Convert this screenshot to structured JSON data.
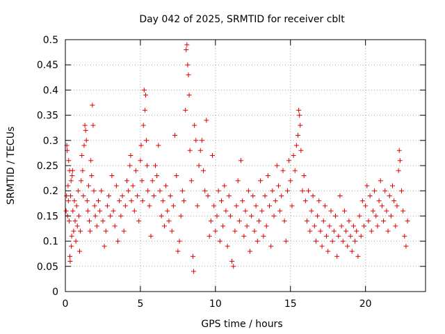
{
  "chart_data": {
    "type": "scatter",
    "title": "Day 042 of 2025, SRMTID for receiver cblt",
    "xlabel": "GPS time / hours",
    "ylabel": "SRMTID / TECUs",
    "xlim": [
      0,
      24
    ],
    "ylim": [
      0,
      0.5
    ],
    "xticks": [
      0,
      5,
      10,
      15,
      20
    ],
    "xtick_labels": [
      "0",
      "5",
      "10",
      "15",
      "20"
    ],
    "yticks": [
      0,
      0.05,
      0.1,
      0.15,
      0.2,
      0.25,
      0.3,
      0.35,
      0.4,
      0.45,
      0.5
    ],
    "ytick_labels": [
      "0",
      "0.05",
      "0.1",
      "0.15",
      "0.2",
      "0.25",
      "0.3",
      "0.35",
      "0.4",
      "0.45",
      "0.5"
    ],
    "grid": true,
    "marker": "+",
    "color": "#e00000",
    "series": [
      {
        "points": [
          [
            0.05,
            0.16
          ],
          [
            0.08,
            0.19
          ],
          [
            0.1,
            0.29
          ],
          [
            0.12,
            0.28
          ],
          [
            0.15,
            0.15
          ],
          [
            0.18,
            0.21
          ],
          [
            0.2,
            0.18
          ],
          [
            0.22,
            0.26
          ],
          [
            0.25,
            0.14
          ],
          [
            0.28,
            0.24
          ],
          [
            0.3,
            0.07
          ],
          [
            0.32,
            0.06
          ],
          [
            0.35,
            0.19
          ],
          [
            0.38,
            0.22
          ],
          [
            0.4,
            0.09
          ],
          [
            0.42,
            0.11
          ],
          [
            0.45,
            0.23
          ],
          [
            0.48,
            0.24
          ],
          [
            0.5,
            0.16
          ],
          [
            0.55,
            0.12
          ],
          [
            0.6,
            0.18
          ],
          [
            0.65,
            0.14
          ],
          [
            0.7,
            0.1
          ],
          [
            0.75,
            0.17
          ],
          [
            0.8,
            0.13
          ],
          [
            0.85,
            0.2
          ],
          [
            0.9,
            0.15
          ],
          [
            0.95,
            0.08
          ],
          [
            1.0,
            0.12
          ],
          [
            1.05,
            0.22
          ],
          [
            1.1,
            0.27
          ],
          [
            1.15,
            0.24
          ],
          [
            1.2,
            0.19
          ],
          [
            1.25,
            0.29
          ],
          [
            1.3,
            0.33
          ],
          [
            1.35,
            0.32
          ],
          [
            1.4,
            0.3
          ],
          [
            1.45,
            0.18
          ],
          [
            1.5,
            0.16
          ],
          [
            1.55,
            0.21
          ],
          [
            1.6,
            0.14
          ],
          [
            1.65,
            0.12
          ],
          [
            1.7,
            0.26
          ],
          [
            1.75,
            0.23
          ],
          [
            1.8,
            0.37
          ],
          [
            1.85,
            0.33
          ],
          [
            1.9,
            0.2
          ],
          [
            1.95,
            0.17
          ],
          [
            2.0,
            0.15
          ],
          [
            2.1,
            0.13
          ],
          [
            2.2,
            0.18
          ],
          [
            2.3,
            0.16
          ],
          [
            2.4,
            0.2
          ],
          [
            2.5,
            0.14
          ],
          [
            2.6,
            0.09
          ],
          [
            2.7,
            0.12
          ],
          [
            2.8,
            0.17
          ],
          [
            2.9,
            0.19
          ],
          [
            3.0,
            0.15
          ],
          [
            3.1,
            0.23
          ],
          [
            3.2,
            0.16
          ],
          [
            3.3,
            0.13
          ],
          [
            3.4,
            0.21
          ],
          [
            3.5,
            0.1
          ],
          [
            3.6,
            0.18
          ],
          [
            3.7,
            0.15
          ],
          [
            3.8,
            0.19
          ],
          [
            3.9,
            0.12
          ],
          [
            4.0,
            0.17
          ],
          [
            4.1,
            0.22
          ],
          [
            4.2,
            0.2
          ],
          [
            4.3,
            0.25
          ],
          [
            4.35,
            0.27
          ],
          [
            4.4,
            0.18
          ],
          [
            4.5,
            0.21
          ],
          [
            4.6,
            0.16
          ],
          [
            4.7,
            0.24
          ],
          [
            4.8,
            0.19
          ],
          [
            4.9,
            0.14
          ],
          [
            5.0,
            0.26
          ],
          [
            5.05,
            0.29
          ],
          [
            5.1,
            0.22
          ],
          [
            5.15,
            0.18
          ],
          [
            5.2,
            0.33
          ],
          [
            5.25,
            0.4
          ],
          [
            5.3,
            0.36
          ],
          [
            5.35,
            0.39
          ],
          [
            5.4,
            0.3
          ],
          [
            5.45,
            0.25
          ],
          [
            5.5,
            0.2
          ],
          [
            5.6,
            0.17
          ],
          [
            5.7,
            0.11
          ],
          [
            5.8,
            0.22
          ],
          [
            5.9,
            0.19
          ],
          [
            6.0,
            0.25
          ],
          [
            6.1,
            0.23
          ],
          [
            6.2,
            0.29
          ],
          [
            6.3,
            0.2
          ],
          [
            6.4,
            0.15
          ],
          [
            6.5,
            0.18
          ],
          [
            6.6,
            0.13
          ],
          [
            6.7,
            0.21
          ],
          [
            6.8,
            0.16
          ],
          [
            6.9,
            0.14
          ],
          [
            7.0,
            0.19
          ],
          [
            7.1,
            0.12
          ],
          [
            7.2,
            0.17
          ],
          [
            7.3,
            0.31
          ],
          [
            7.4,
            0.23
          ],
          [
            7.5,
            0.08
          ],
          [
            7.6,
            0.1
          ],
          [
            7.7,
            0.15
          ],
          [
            7.8,
            0.2
          ],
          [
            7.9,
            0.18
          ],
          [
            8.0,
            0.36
          ],
          [
            8.05,
            0.48
          ],
          [
            8.1,
            0.49
          ],
          [
            8.15,
            0.45
          ],
          [
            8.2,
            0.43
          ],
          [
            8.25,
            0.39
          ],
          [
            8.3,
            0.28
          ],
          [
            8.4,
            0.22
          ],
          [
            8.5,
            0.07
          ],
          [
            8.55,
            0.04
          ],
          [
            8.6,
            0.33
          ],
          [
            8.7,
            0.3
          ],
          [
            8.8,
            0.17
          ],
          [
            8.9,
            0.25
          ],
          [
            9.0,
            0.28
          ],
          [
            9.1,
            0.3
          ],
          [
            9.2,
            0.24
          ],
          [
            9.3,
            0.2
          ],
          [
            9.4,
            0.34
          ],
          [
            9.5,
            0.19
          ],
          [
            9.6,
            0.11
          ],
          [
            9.7,
            0.14
          ],
          [
            9.8,
            0.27
          ],
          [
            9.9,
            0.17
          ],
          [
            10.0,
            0.12
          ],
          [
            10.1,
            0.15
          ],
          [
            10.2,
            0.2
          ],
          [
            10.3,
            0.1
          ],
          [
            10.4,
            0.18
          ],
          [
            10.5,
            0.13
          ],
          [
            10.6,
            0.21
          ],
          [
            10.7,
            0.16
          ],
          [
            10.8,
            0.09
          ],
          [
            10.9,
            0.19
          ],
          [
            11.0,
            0.15
          ],
          [
            11.1,
            0.06
          ],
          [
            11.2,
            0.05
          ],
          [
            11.3,
            0.12
          ],
          [
            11.4,
            0.17
          ],
          [
            11.5,
            0.22
          ],
          [
            11.6,
            0.14
          ],
          [
            11.7,
            0.26
          ],
          [
            11.8,
            0.18
          ],
          [
            11.9,
            0.11
          ],
          [
            12.0,
            0.16
          ],
          [
            12.1,
            0.13
          ],
          [
            12.2,
            0.2
          ],
          [
            12.3,
            0.08
          ],
          [
            12.4,
            0.15
          ],
          [
            12.5,
            0.19
          ],
          [
            12.6,
            0.12
          ],
          [
            12.7,
            0.17
          ],
          [
            12.8,
            0.1
          ],
          [
            12.9,
            0.14
          ],
          [
            13.0,
            0.22
          ],
          [
            13.1,
            0.16
          ],
          [
            13.2,
            0.11
          ],
          [
            13.3,
            0.19
          ],
          [
            13.4,
            0.13
          ],
          [
            13.5,
            0.23
          ],
          [
            13.6,
            0.17
          ],
          [
            13.7,
            0.09
          ],
          [
            13.8,
            0.2
          ],
          [
            13.9,
            0.15
          ],
          [
            14.0,
            0.18
          ],
          [
            14.1,
            0.25
          ],
          [
            14.2,
            0.21
          ],
          [
            14.3,
            0.16
          ],
          [
            14.4,
            0.19
          ],
          [
            14.5,
            0.24
          ],
          [
            14.6,
            0.14
          ],
          [
            14.7,
            0.1
          ],
          [
            14.8,
            0.2
          ],
          [
            14.9,
            0.26
          ],
          [
            15.0,
            0.22
          ],
          [
            15.1,
            0.17
          ],
          [
            15.2,
            0.27
          ],
          [
            15.3,
            0.24
          ],
          [
            15.4,
            0.29
          ],
          [
            15.5,
            0.31
          ],
          [
            15.55,
            0.36
          ],
          [
            15.6,
            0.35
          ],
          [
            15.65,
            0.33
          ],
          [
            15.7,
            0.28
          ],
          [
            15.8,
            0.2
          ],
          [
            15.9,
            0.23
          ],
          [
            16.0,
            0.18
          ],
          [
            16.1,
            0.14
          ],
          [
            16.2,
            0.2
          ],
          [
            16.3,
            0.12
          ],
          [
            16.4,
            0.16
          ],
          [
            16.5,
            0.19
          ],
          [
            16.6,
            0.13
          ],
          [
            16.7,
            0.1
          ],
          [
            16.8,
            0.15
          ],
          [
            16.9,
            0.18
          ],
          [
            17.0,
            0.12
          ],
          [
            17.1,
            0.09
          ],
          [
            17.2,
            0.14
          ],
          [
            17.3,
            0.17
          ],
          [
            17.4,
            0.11
          ],
          [
            17.5,
            0.08
          ],
          [
            17.6,
            0.13
          ],
          [
            17.7,
            0.16
          ],
          [
            17.8,
            0.1
          ],
          [
            17.9,
            0.12
          ],
          [
            18.0,
            0.15
          ],
          [
            18.1,
            0.07
          ],
          [
            18.2,
            0.11
          ],
          [
            18.3,
            0.19
          ],
          [
            18.4,
            0.13
          ],
          [
            18.5,
            0.1
          ],
          [
            18.6,
            0.16
          ],
          [
            18.7,
            0.12
          ],
          [
            18.8,
            0.09
          ],
          [
            18.9,
            0.14
          ],
          [
            19.0,
            0.11
          ],
          [
            19.1,
            0.08
          ],
          [
            19.2,
            0.13
          ],
          [
            19.3,
            0.1
          ],
          [
            19.4,
            0.12
          ],
          [
            19.5,
            0.07
          ],
          [
            19.6,
            0.15
          ],
          [
            19.7,
            0.11
          ],
          [
            19.8,
            0.18
          ],
          [
            19.9,
            0.13
          ],
          [
            20.0,
            0.17
          ],
          [
            20.1,
            0.21
          ],
          [
            20.2,
            0.14
          ],
          [
            20.3,
            0.19
          ],
          [
            20.4,
            0.12
          ],
          [
            20.5,
            0.16
          ],
          [
            20.6,
            0.2
          ],
          [
            20.7,
            0.15
          ],
          [
            20.8,
            0.13
          ],
          [
            20.9,
            0.18
          ],
          [
            21.0,
            0.22
          ],
          [
            21.1,
            0.17
          ],
          [
            21.2,
            0.14
          ],
          [
            21.3,
            0.2
          ],
          [
            21.4,
            0.16
          ],
          [
            21.5,
            0.12
          ],
          [
            21.6,
            0.19
          ],
          [
            21.7,
            0.15
          ],
          [
            21.8,
            0.21
          ],
          [
            21.9,
            0.18
          ],
          [
            22.0,
            0.13
          ],
          [
            22.1,
            0.17
          ],
          [
            22.2,
            0.24
          ],
          [
            22.25,
            0.28
          ],
          [
            22.3,
            0.26
          ],
          [
            22.4,
            0.2
          ],
          [
            22.5,
            0.16
          ],
          [
            22.6,
            0.11
          ],
          [
            22.7,
            0.09
          ],
          [
            22.8,
            0.14
          ]
        ]
      }
    ]
  }
}
